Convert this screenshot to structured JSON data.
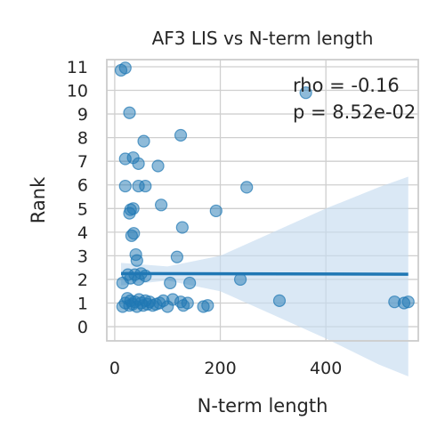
{
  "chart_data": {
    "type": "scatter",
    "title": "AF3 LIS vs N-term length",
    "xlabel": "N-term length",
    "ylabel": "Rank",
    "xlim": [
      -15,
      575
    ],
    "ylim": [
      -0.6,
      11.3
    ],
    "xticks": [
      0,
      200,
      400
    ],
    "yticks": [
      0,
      1,
      2,
      3,
      4,
      5,
      6,
      7,
      8,
      9,
      10,
      11
    ],
    "grid": true,
    "annotations": [
      "rho = -0.16",
      "p = 8.52e-02"
    ],
    "colors": {
      "points": "#1f77b4",
      "line": "#1f77b4",
      "band": "#c6dcef",
      "grid": "#cfcfcf",
      "spine": "#cccccc"
    },
    "points": [
      {
        "x": 12,
        "y": 10.85
      },
      {
        "x": 20,
        "y": 10.95
      },
      {
        "x": 28,
        "y": 9.05
      },
      {
        "x": 362,
        "y": 9.9
      },
      {
        "x": 55,
        "y": 7.85
      },
      {
        "x": 125,
        "y": 8.1
      },
      {
        "x": 20,
        "y": 7.1
      },
      {
        "x": 35,
        "y": 7.15
      },
      {
        "x": 45,
        "y": 6.9
      },
      {
        "x": 82,
        "y": 6.8
      },
      {
        "x": 20,
        "y": 5.95
      },
      {
        "x": 45,
        "y": 5.95
      },
      {
        "x": 58,
        "y": 5.95
      },
      {
        "x": 250,
        "y": 5.9
      },
      {
        "x": 30,
        "y": 4.95
      },
      {
        "x": 35,
        "y": 5.0
      },
      {
        "x": 88,
        "y": 5.15
      },
      {
        "x": 192,
        "y": 4.9
      },
      {
        "x": 28,
        "y": 4.8
      },
      {
        "x": 32,
        "y": 3.85
      },
      {
        "x": 36,
        "y": 3.95
      },
      {
        "x": 128,
        "y": 4.2
      },
      {
        "x": 40,
        "y": 3.05
      },
      {
        "x": 42,
        "y": 2.8
      },
      {
        "x": 118,
        "y": 2.95
      },
      {
        "x": 15,
        "y": 1.85
      },
      {
        "x": 25,
        "y": 2.2
      },
      {
        "x": 30,
        "y": 2.05
      },
      {
        "x": 38,
        "y": 2.2
      },
      {
        "x": 45,
        "y": 2.0
      },
      {
        "x": 50,
        "y": 2.25
      },
      {
        "x": 58,
        "y": 2.15
      },
      {
        "x": 105,
        "y": 1.85
      },
      {
        "x": 142,
        "y": 1.85
      },
      {
        "x": 238,
        "y": 2.0
      },
      {
        "x": 15,
        "y": 0.85
      },
      {
        "x": 20,
        "y": 1.0
      },
      {
        "x": 24,
        "y": 1.2
      },
      {
        "x": 28,
        "y": 0.9
      },
      {
        "x": 30,
        "y": 1.1
      },
      {
        "x": 34,
        "y": 0.95
      },
      {
        "x": 38,
        "y": 1.05
      },
      {
        "x": 42,
        "y": 0.85
      },
      {
        "x": 46,
        "y": 1.15
      },
      {
        "x": 50,
        "y": 1.0
      },
      {
        "x": 54,
        "y": 0.9
      },
      {
        "x": 58,
        "y": 1.1
      },
      {
        "x": 62,
        "y": 0.95
      },
      {
        "x": 66,
        "y": 1.05
      },
      {
        "x": 72,
        "y": 0.9
      },
      {
        "x": 78,
        "y": 0.95
      },
      {
        "x": 85,
        "y": 1.0
      },
      {
        "x": 92,
        "y": 1.1
      },
      {
        "x": 100,
        "y": 0.85
      },
      {
        "x": 110,
        "y": 1.15
      },
      {
        "x": 125,
        "y": 1.05
      },
      {
        "x": 130,
        "y": 0.9
      },
      {
        "x": 138,
        "y": 1.0
      },
      {
        "x": 168,
        "y": 0.85
      },
      {
        "x": 176,
        "y": 0.9
      },
      {
        "x": 312,
        "y": 1.1
      },
      {
        "x": 530,
        "y": 1.05
      },
      {
        "x": 548,
        "y": 1.0
      },
      {
        "x": 556,
        "y": 1.05
      }
    ],
    "regression": {
      "x": [
        12,
        556
      ],
      "y": [
        2.25,
        2.22
      ]
    },
    "ci_band": {
      "x": [
        12,
        100,
        200,
        300,
        400,
        500,
        556
      ],
      "lower": [
        1.75,
        1.95,
        1.5,
        0.5,
        -0.5,
        -1.6,
        -2.1
      ],
      "upper": [
        2.7,
        2.55,
        3.0,
        4.0,
        5.0,
        5.9,
        6.35
      ]
    }
  }
}
